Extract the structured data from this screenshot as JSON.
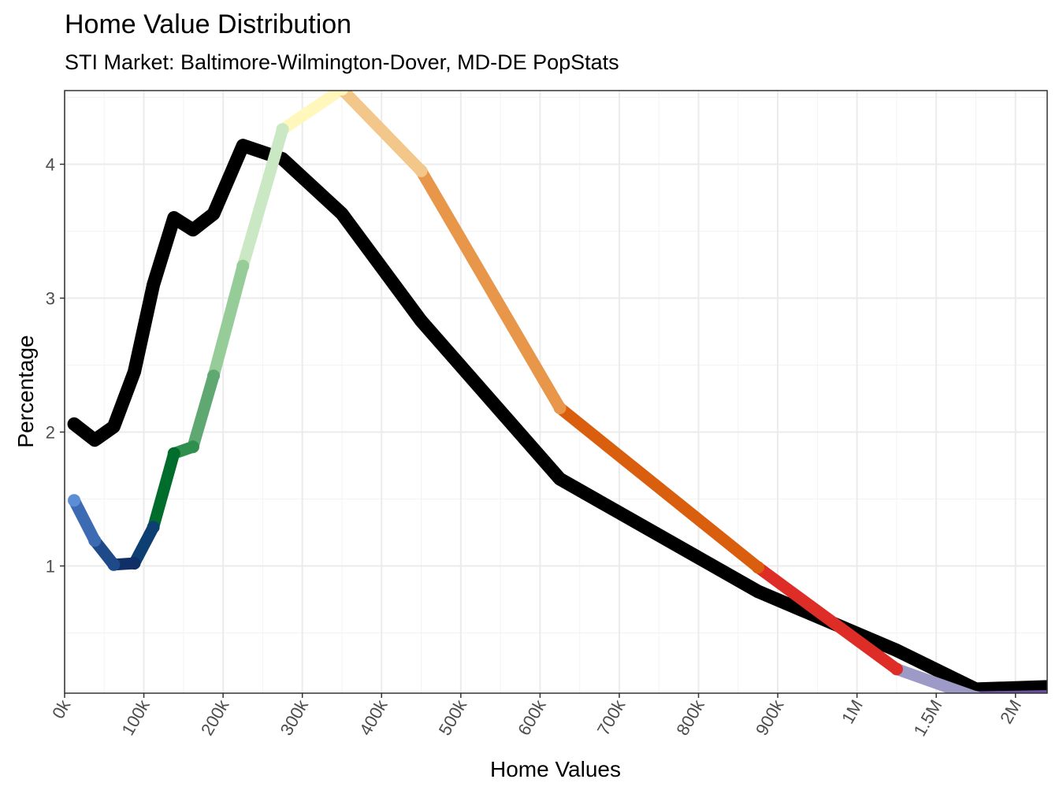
{
  "chart_data": {
    "type": "line",
    "title": "Home Value Distribution",
    "subtitle": "STI Market: Baltimore-Wilmington-Dover, MD-DE PopStats",
    "xlabel": "Home Values",
    "ylabel": "Percentage",
    "x_categories": [
      "0k",
      "100k",
      "200k",
      "300k",
      "400k",
      "500k",
      "600k",
      "700k",
      "800k",
      "900k",
      "1M",
      "1.5M",
      "2M"
    ],
    "x_index_range": [
      0,
      12.4
    ],
    "ylim": [
      0.05,
      4.55
    ],
    "y_ticks": [
      1,
      2,
      3,
      4
    ],
    "series": [
      {
        "name": "PopStats",
        "color": "#000000",
        "points": [
          {
            "x": 0.12,
            "y": 2.06
          },
          {
            "x": 0.38,
            "y": 1.94
          },
          {
            "x": 0.62,
            "y": 2.04
          },
          {
            "x": 0.88,
            "y": 2.45
          },
          {
            "x": 1.12,
            "y": 3.1
          },
          {
            "x": 1.38,
            "y": 3.6
          },
          {
            "x": 1.62,
            "y": 3.51
          },
          {
            "x": 1.88,
            "y": 3.63
          },
          {
            "x": 2.25,
            "y": 4.14
          },
          {
            "x": 2.75,
            "y": 4.04
          },
          {
            "x": 3.5,
            "y": 3.63
          },
          {
            "x": 4.5,
            "y": 2.83
          },
          {
            "x": 6.25,
            "y": 1.65
          },
          {
            "x": 8.75,
            "y": 0.81
          },
          {
            "x": 10.5,
            "y": 0.37
          },
          {
            "x": 11.5,
            "y": 0.08
          },
          {
            "x": 12.5,
            "y": 0.1
          }
        ]
      },
      {
        "name": "STI Market",
        "points": [
          {
            "x": 0.12,
            "y": 1.49,
            "color": "#5b8ed6"
          },
          {
            "x": 0.38,
            "y": 1.19,
            "color": "#3c6bb4"
          },
          {
            "x": 0.62,
            "y": 1.01,
            "color": "#1f4a8a"
          },
          {
            "x": 0.88,
            "y": 1.02,
            "color": "#0f2f66"
          },
          {
            "x": 1.12,
            "y": 1.29,
            "color": "#0e3f73"
          },
          {
            "x": 1.38,
            "y": 1.84,
            "color": "#006d2c"
          },
          {
            "x": 1.62,
            "y": 1.89,
            "color": "#2f8f4f"
          },
          {
            "x": 1.88,
            "y": 2.42,
            "color": "#5fa871"
          },
          {
            "x": 2.25,
            "y": 3.24,
            "color": "#95cc97"
          },
          {
            "x": 2.75,
            "y": 4.26,
            "color": "#c9e8c3"
          },
          {
            "x": 3.5,
            "y": 4.56,
            "color": "#fff7bc"
          },
          {
            "x": 4.5,
            "y": 3.95,
            "color": "#f3c68a"
          },
          {
            "x": 6.25,
            "y": 2.18,
            "color": "#e8964a"
          },
          {
            "x": 8.75,
            "y": 0.99,
            "color": "#d95f0e"
          },
          {
            "x": 10.5,
            "y": 0.23,
            "color": "#de2d26"
          },
          {
            "x": 11.5,
            "y": 0.02,
            "color": "#9e9ac8"
          },
          {
            "x": 12.5,
            "y": 0.03,
            "color": "#6a51a3"
          }
        ]
      }
    ],
    "grid": true,
    "legend": "none"
  }
}
